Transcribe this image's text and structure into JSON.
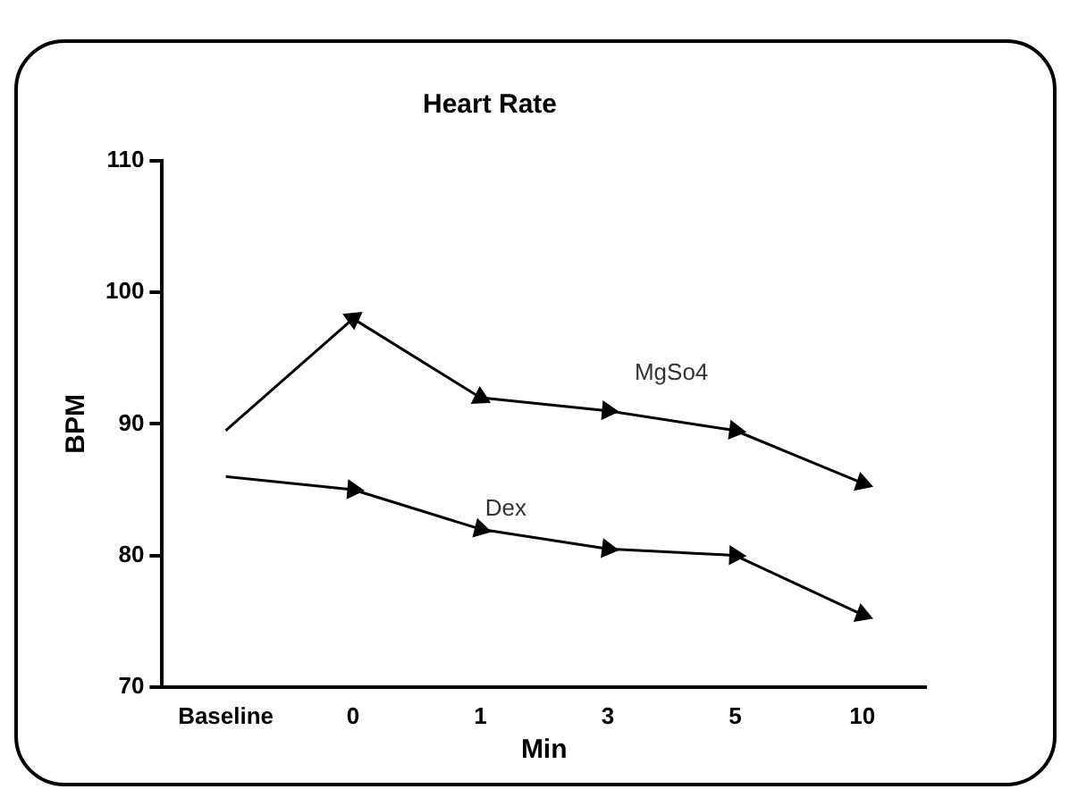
{
  "chart_data": {
    "type": "line",
    "title": "Heart Rate",
    "xlabel": "Min",
    "ylabel": "BPM",
    "categories": [
      "Baseline",
      "0",
      "1",
      "3",
      "5",
      "10"
    ],
    "series": [
      {
        "name": "MgSo4",
        "color": "#000000",
        "values": [
          89.5,
          98,
          92,
          91,
          89.5,
          85.5
        ]
      },
      {
        "name": "Dex",
        "color": "#000000",
        "values": [
          86,
          85,
          82,
          80.5,
          80,
          75.5
        ]
      }
    ],
    "ylim": [
      70,
      110
    ],
    "yticks": [
      70,
      80,
      90,
      100,
      110
    ],
    "grid": false,
    "legend": false,
    "marker": "triangle",
    "line_style": "solid"
  }
}
